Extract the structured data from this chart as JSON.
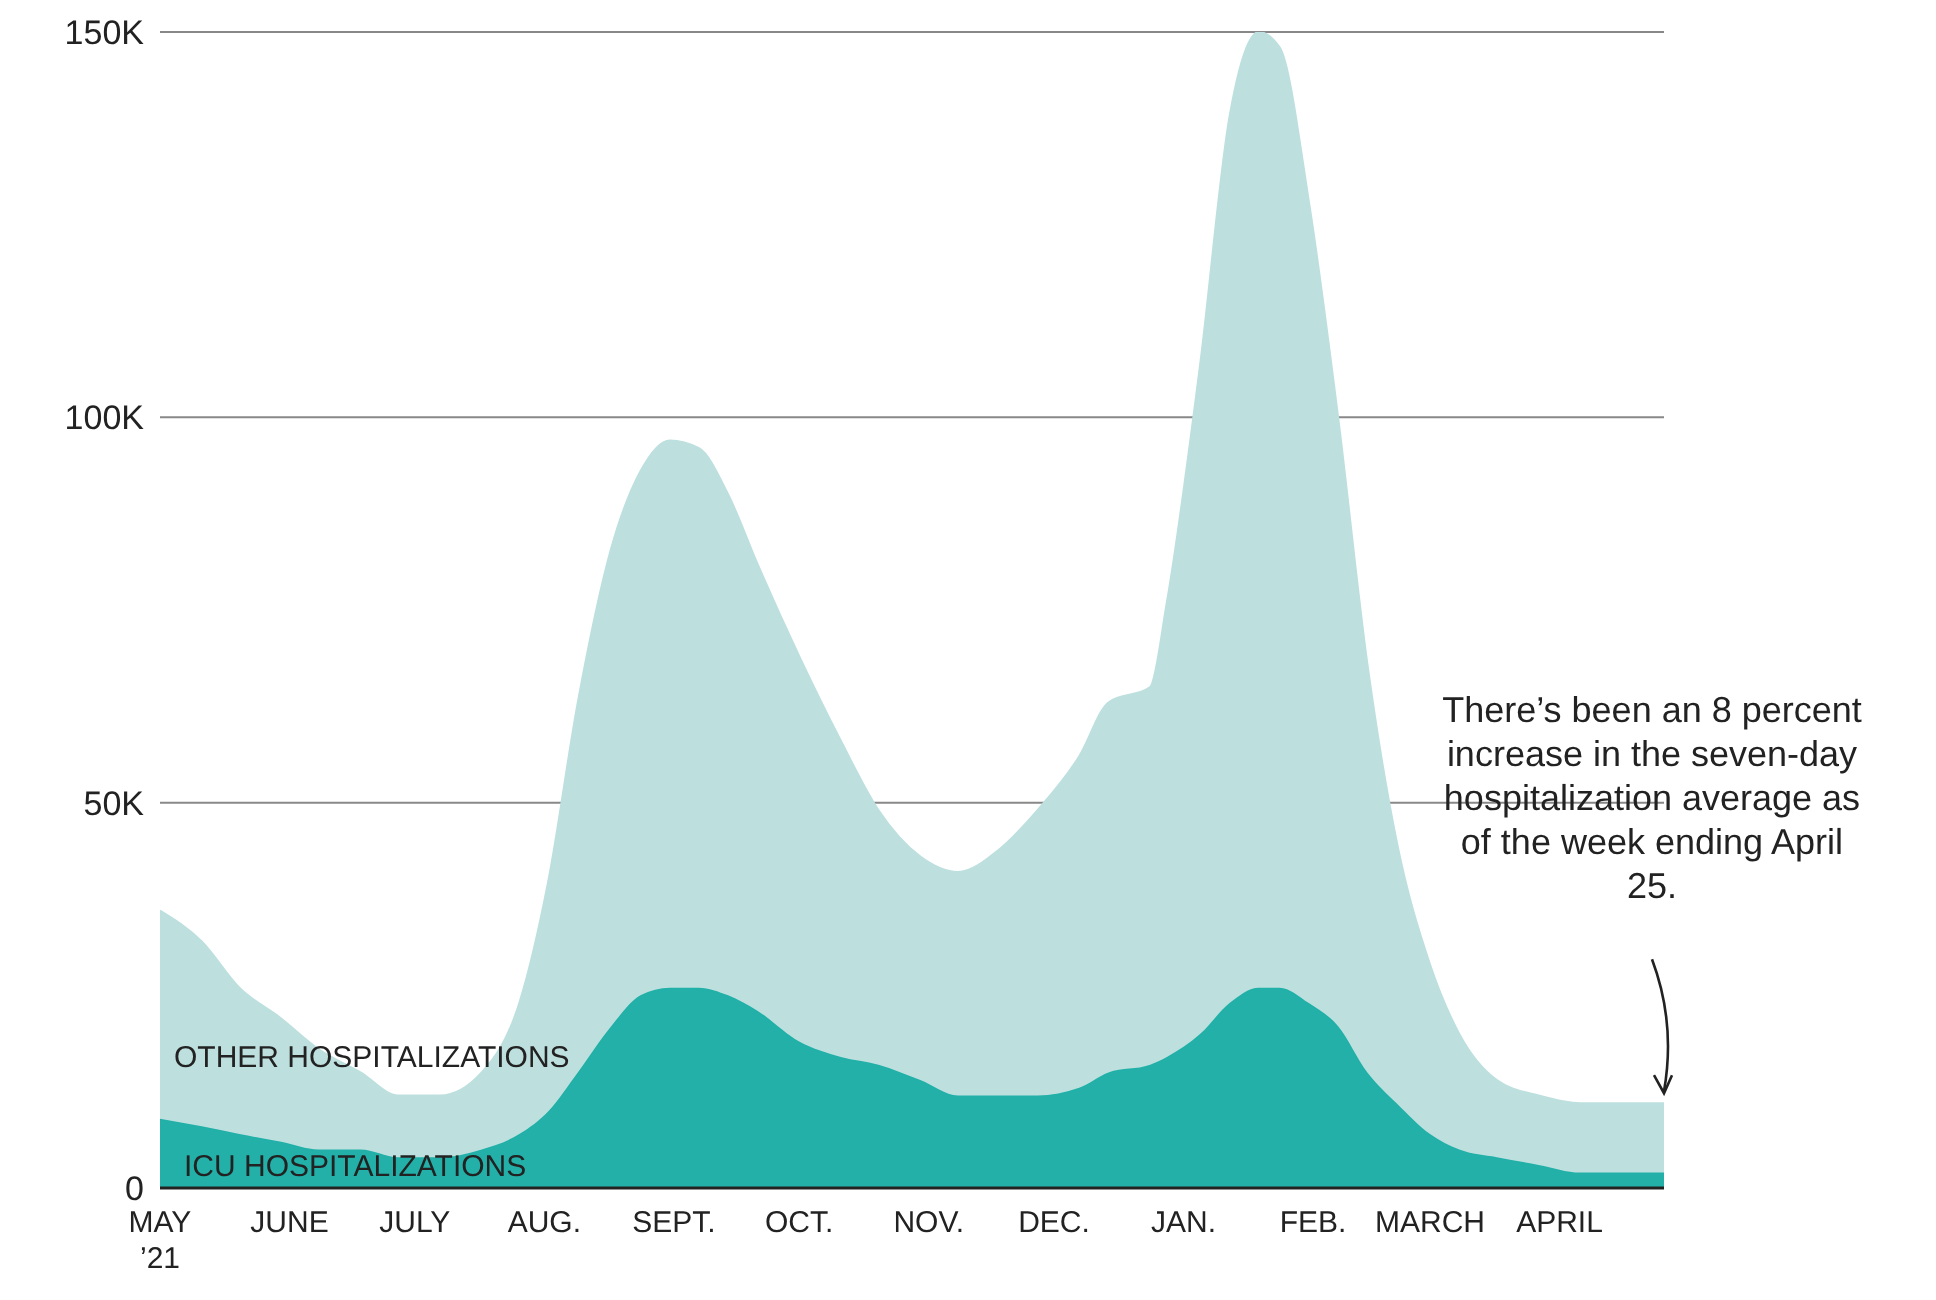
{
  "chart_data": {
    "type": "area",
    "stacked": true,
    "grid": "y",
    "x": [
      "2021-05-01",
      "2021-05-11",
      "2021-05-20",
      "2021-05-30",
      "2021-06-08",
      "2021-06-18",
      "2021-06-27",
      "2021-07-07",
      "2021-07-17",
      "2021-07-26",
      "2021-08-02",
      "2021-08-09",
      "2021-08-17",
      "2021-08-24",
      "2021-08-31",
      "2021-09-07",
      "2021-09-14",
      "2021-09-21",
      "2021-10-01",
      "2021-10-11",
      "2021-10-20",
      "2021-10-30",
      "2021-11-08",
      "2021-11-18",
      "2021-11-27",
      "2021-12-07",
      "2021-12-14",
      "2021-12-24",
      "2021-12-28",
      "2022-01-05",
      "2022-01-12",
      "2022-01-19",
      "2022-01-24",
      "2022-01-31",
      "2022-02-07",
      "2022-02-14",
      "2022-02-21",
      "2022-03-01",
      "2022-03-08",
      "2022-03-17",
      "2022-03-27",
      "2022-04-06",
      "2022-04-15",
      "2022-04-26"
    ],
    "series": [
      {
        "name": "ICU HOSPITALIZATIONS",
        "color": "#22b0a8",
        "values": [
          9,
          8,
          7,
          6,
          5,
          5,
          4,
          4,
          5,
          7,
          10,
          15,
          21,
          25,
          26,
          26,
          25,
          23,
          19,
          17,
          16,
          14,
          12,
          12,
          12,
          13,
          15,
          16,
          17,
          20,
          24,
          26,
          26,
          24,
          21,
          15,
          11,
          7,
          5,
          4,
          3,
          2,
          2,
          2
        ]
      },
      {
        "name": "OTHER HOSPITALIZATIONS",
        "color": "#bde0df",
        "values": [
          27,
          24,
          19,
          16,
          13,
          10,
          8,
          8,
          10,
          17,
          30,
          48,
          62,
          68,
          71,
          70,
          65,
          58,
          50,
          41,
          33,
          29,
          29,
          32,
          37,
          43,
          48,
          49,
          59,
          87,
          115,
          124,
          122,
          104,
          79,
          53,
          34,
          22,
          15,
          10,
          9,
          9,
          9,
          9
        ]
      }
    ],
    "xlim": [
      "2021-05-01",
      "2022-04-26"
    ],
    "xticks": [
      {
        "value": "2021-05-01",
        "label": "MAY\n’21"
      },
      {
        "value": "2021-06-01",
        "label": "JUNE"
      },
      {
        "value": "2021-07-01",
        "label": "JULY"
      },
      {
        "value": "2021-08-01",
        "label": "AUG."
      },
      {
        "value": "2021-09-01",
        "label": "SEPT."
      },
      {
        "value": "2021-10-01",
        "label": "OCT."
      },
      {
        "value": "2021-11-01",
        "label": "NOV."
      },
      {
        "value": "2021-12-01",
        "label": "DEC."
      },
      {
        "value": "2022-01-01",
        "label": "JAN."
      },
      {
        "value": "2022-02-01",
        "label": "FEB."
      },
      {
        "value": "2022-03-01",
        "label": "MARCH"
      },
      {
        "value": "2022-04-01",
        "label": "APRIL"
      }
    ],
    "ylim": [
      0,
      150
    ],
    "yticks": [
      {
        "value": 0,
        "label": "0"
      },
      {
        "value": 50,
        "label": "50K"
      },
      {
        "value": 100,
        "label": "100K"
      },
      {
        "value": 150,
        "label": "150K"
      }
    ],
    "annotations": [
      "There’s been an 8 percent increase in the seven-day hospitalization average as of the week ending April 25."
    ]
  }
}
